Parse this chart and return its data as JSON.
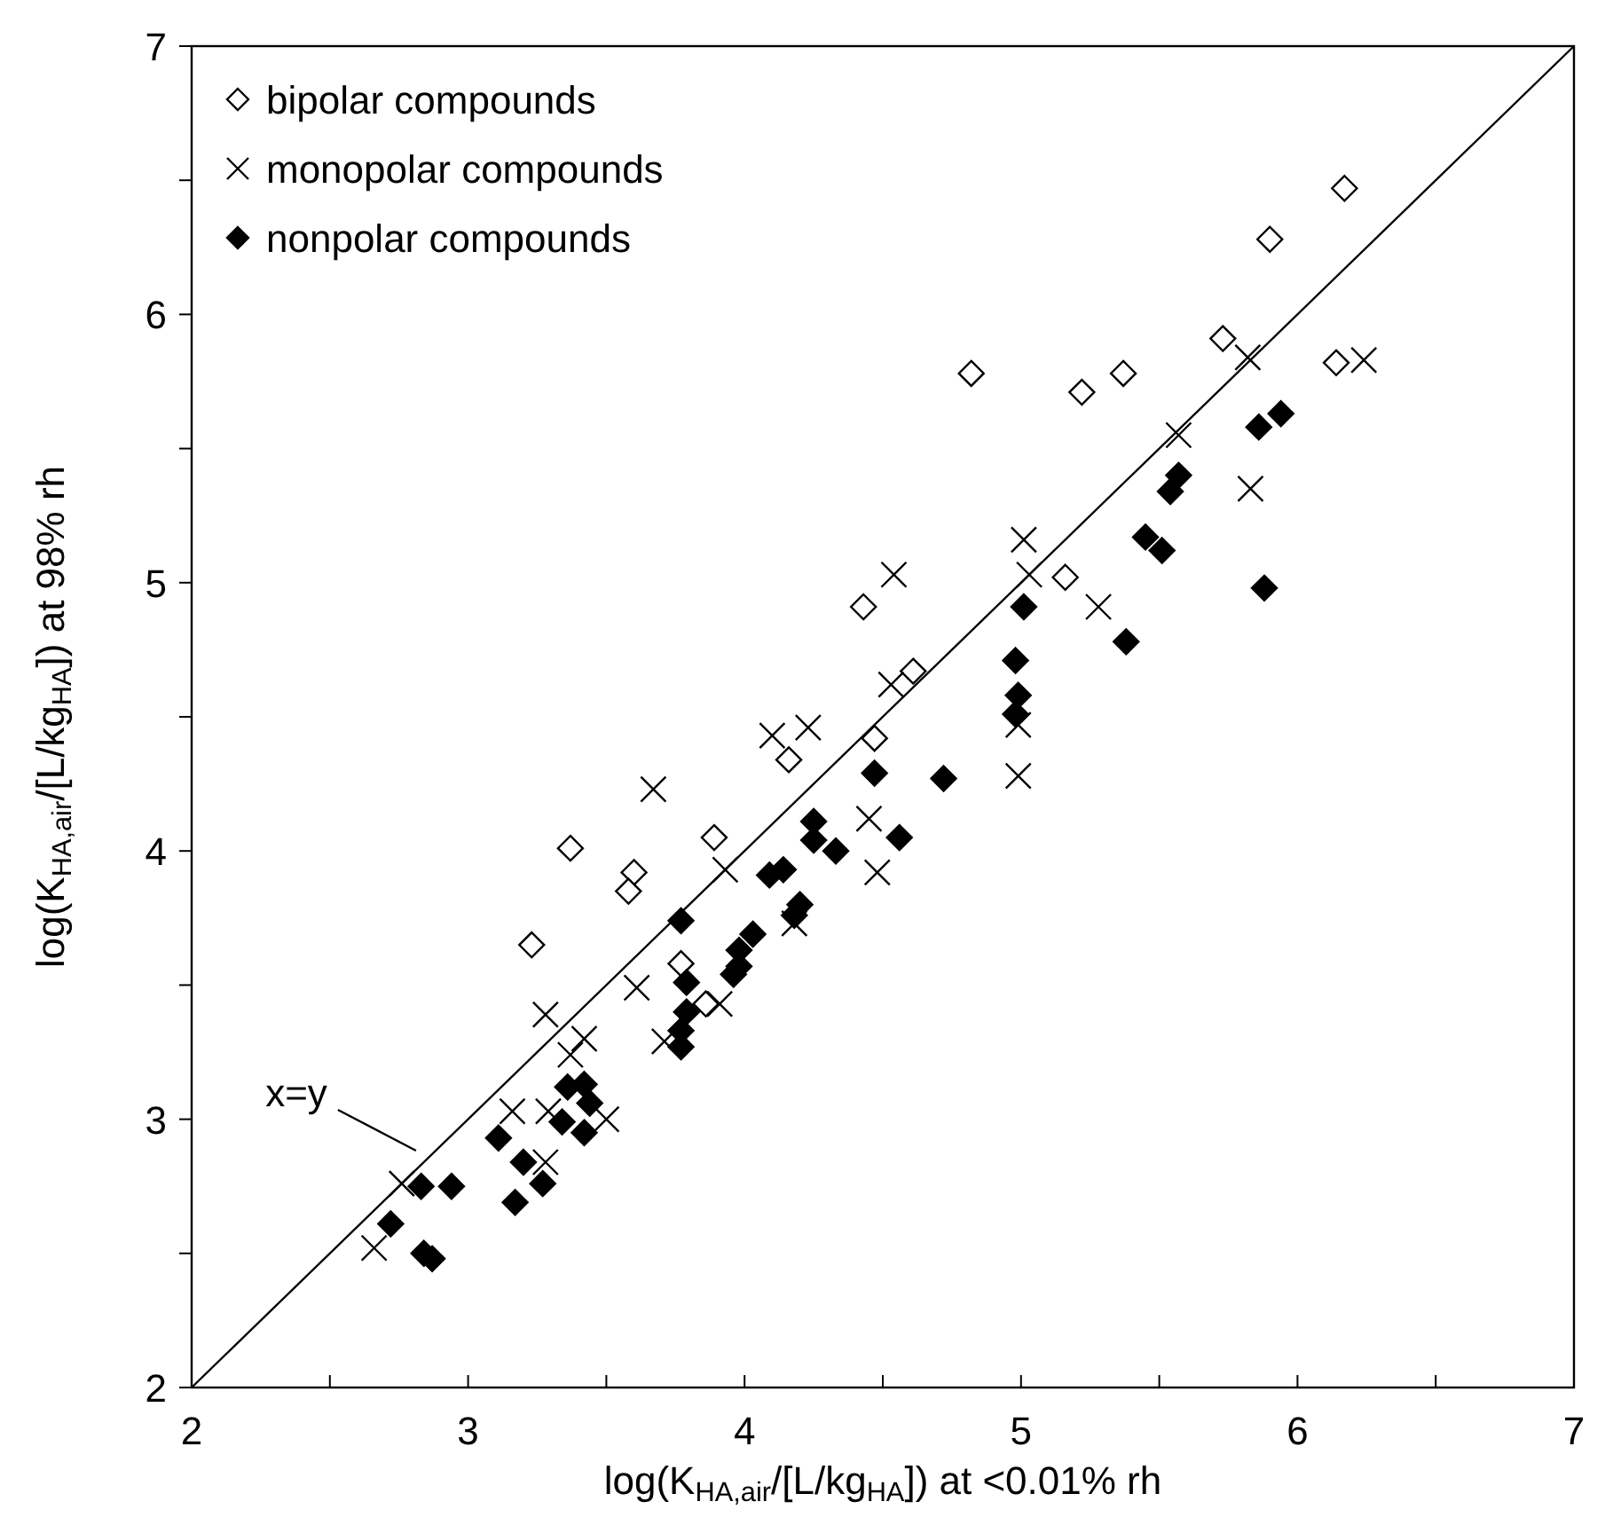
{
  "chart_data": {
    "type": "scatter",
    "xlabel": "log(K$_{HA,air}$/[L/kg$_{HA}$]) at <0.01% rh",
    "ylabel": "log(K$_{HA,air}$/[L/kg$_{HA}$]) at 98% rh",
    "xlim": [
      2,
      7
    ],
    "ylim": [
      2,
      7
    ],
    "xticks": [
      2,
      {
        "value": 2.5,
        "label": null
      },
      3,
      {
        "value": 3.5,
        "label": null
      },
      4,
      {
        "value": 4.5,
        "label": null
      },
      5,
      {
        "value": 5.5,
        "label": null
      },
      6,
      {
        "value": 6.5,
        "label": null
      },
      7
    ],
    "yticks": [
      2,
      {
        "value": 2.5,
        "label": null
      },
      3,
      {
        "value": 3.5,
        "label": null
      },
      4,
      {
        "value": 4.5,
        "label": null
      },
      5,
      {
        "value": 5.5,
        "label": null
      },
      6,
      {
        "value": 6.5,
        "label": null
      },
      7
    ],
    "grid": false,
    "legend": "top left",
    "annotations": [
      {
        "text": "x=y",
        "x": 2.85,
        "y": 2.85
      }
    ],
    "series": [
      {
        "name": "bipolar compounds",
        "color": "#ffffff",
        "marker": "diamond",
        "x": [
          4.82,
          5.22,
          5.37,
          5.73,
          5.9,
          6.17,
          6.14,
          5.16,
          4.43,
          4.61,
          4.47,
          4.16,
          3.89,
          3.37,
          3.6,
          3.58,
          3.23,
          3.77,
          3.86
        ],
        "values": [
          5.78,
          5.71,
          5.78,
          5.91,
          6.28,
          6.47,
          5.82,
          5.02,
          4.91,
          4.67,
          4.42,
          4.34,
          4.05,
          4.01,
          3.92,
          3.85,
          3.65,
          3.58,
          3.43
        ]
      },
      {
        "name": "monopolar compounds",
        "color": "#000000",
        "marker": "cross",
        "x": [
          5.82,
          6.24,
          5.57,
          5.83,
          5.01,
          5.03,
          5.28,
          4.54,
          4.53,
          4.99,
          4.99,
          4.1,
          4.23,
          3.67,
          4.45,
          4.48,
          3.93,
          4.18,
          3.61,
          3.91,
          3.71,
          3.28,
          3.42,
          3.37,
          3.16,
          3.29,
          3.5,
          3.28,
          2.76,
          2.66
        ],
        "values": [
          5.84,
          5.83,
          5.55,
          5.35,
          5.16,
          5.03,
          4.91,
          5.03,
          4.62,
          4.47,
          4.28,
          4.43,
          4.46,
          4.23,
          4.12,
          3.92,
          3.93,
          3.73,
          3.49,
          3.43,
          3.29,
          3.39,
          3.3,
          3.24,
          3.03,
          3.03,
          3.0,
          2.84,
          2.76,
          2.52
        ]
      },
      {
        "name": "nonpolar compounds",
        "color": "#000000",
        "marker": "diamond",
        "x": [
          5.94,
          5.86,
          5.57,
          5.54,
          5.45,
          5.51,
          5.38,
          5.88,
          5.01,
          4.98,
          4.99,
          4.98,
          4.47,
          4.72,
          4.25,
          4.25,
          4.33,
          4.56,
          4.09,
          4.14,
          4.2,
          4.18,
          4.03,
          3.98,
          3.98,
          3.96,
          3.77,
          3.79,
          3.79,
          3.77,
          3.77,
          3.36,
          3.42,
          3.44,
          3.34,
          3.42,
          3.11,
          3.2,
          3.27,
          3.17,
          2.83,
          2.94,
          2.72,
          2.84,
          2.87
        ],
        "values": [
          5.63,
          5.58,
          5.4,
          5.34,
          5.17,
          5.12,
          4.78,
          4.98,
          4.91,
          4.71,
          4.58,
          4.51,
          4.29,
          4.27,
          4.11,
          4.04,
          4.0,
          4.05,
          3.91,
          3.93,
          3.8,
          3.76,
          3.69,
          3.63,
          3.57,
          3.54,
          3.74,
          3.51,
          3.4,
          3.33,
          3.27,
          3.12,
          3.13,
          3.06,
          2.99,
          2.95,
          2.93,
          2.84,
          2.76,
          2.69,
          2.75,
          2.75,
          2.61,
          2.5,
          2.48
        ]
      },
      {
        "type": "line",
        "color": "#000000",
        "marker": "none",
        "x": [
          2,
          7
        ],
        "values": [
          2,
          7
        ]
      }
    ]
  }
}
